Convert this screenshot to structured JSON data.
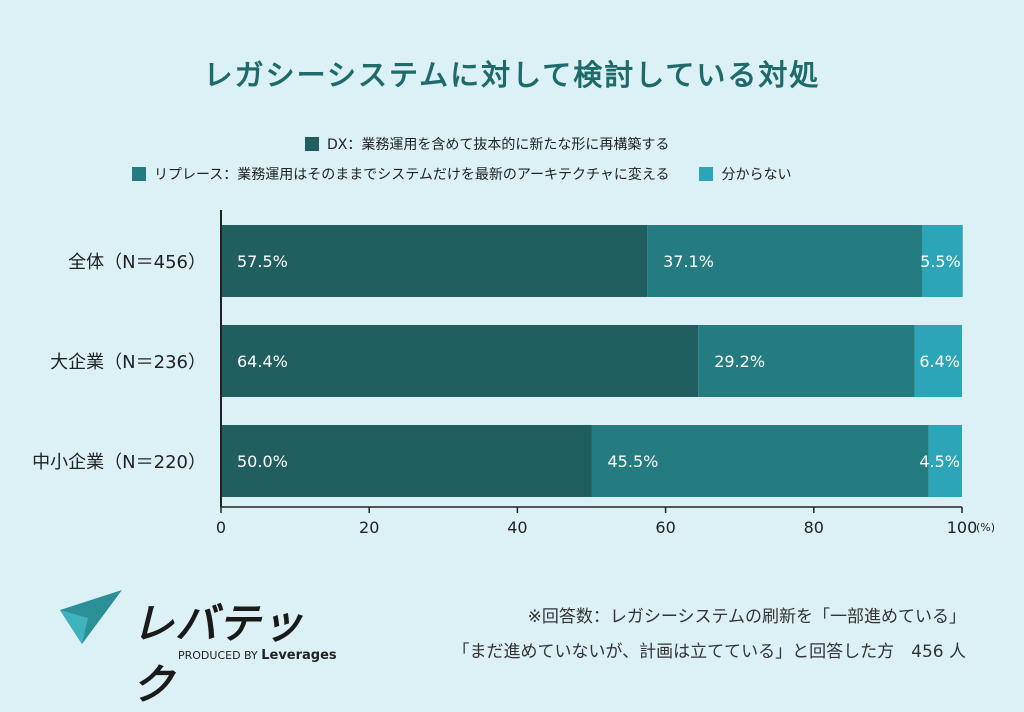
{
  "chart_data": {
    "type": "bar",
    "orientation": "horizontal",
    "stacked": true,
    "title": "レガシーシステムに対して検討している対処",
    "categories": [
      "全体（N＝456）",
      "大企業（N＝236）",
      "中小企業（N＝220）"
    ],
    "series": [
      {
        "name": "DX：業務運用を含めて抜本的に新たな形に再構築する",
        "color": "#215e5f",
        "values": [
          57.5,
          64.4,
          50.0
        ],
        "labels": [
          "57.5%",
          "64.4%",
          "50.0%"
        ]
      },
      {
        "name": "リプレース：業務運用はそのままでシステムだけを最新のアーキテクチャに変える",
        "color": "#257c80",
        "values": [
          37.1,
          29.2,
          45.5
        ],
        "labels": [
          "37.1%",
          "29.2%",
          "45.5%"
        ]
      },
      {
        "name": "分からない",
        "color": "#2ba5b7",
        "values": [
          5.5,
          6.4,
          4.5
        ],
        "labels": [
          "5.5%",
          "6.4%",
          "4.5%"
        ]
      }
    ],
    "xlim": [
      0,
      100
    ],
    "xticks": [
      "0",
      "20",
      "40",
      "60",
      "80",
      "100"
    ],
    "xunit": "(%)",
    "legend_position": "top"
  },
  "footer": {
    "note_line1": "※回答数：レガシーシステムの刷新を「一部進めている」",
    "note_line2": "「まだ進めていないが、計画は立てている」と回答した方　456 人"
  },
  "logo": {
    "name": "レバテック",
    "produced_by": "PRODUCED BY",
    "brand": "Leverages"
  }
}
